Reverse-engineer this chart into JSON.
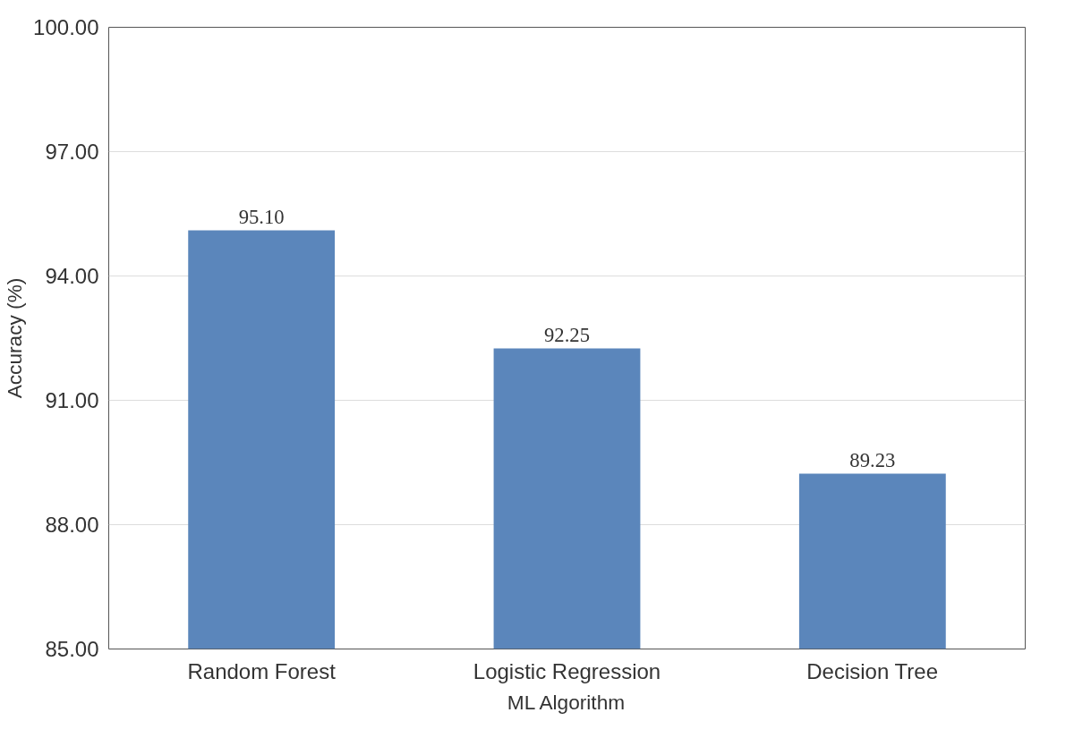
{
  "chart_data": {
    "type": "bar",
    "xlabel": "ML Algorithm",
    "ylabel": "Accuracy (%)",
    "categories": [
      "Random Forest",
      "Logistic Regression",
      "Decision Tree"
    ],
    "values": [
      95.1,
      92.25,
      89.23
    ],
    "value_labels": [
      "95.10",
      "92.25",
      "89.23"
    ],
    "color": "#5b86bb",
    "ylim": [
      85,
      100
    ],
    "yticks": [
      {
        "value": 85,
        "label": "85.00"
      },
      {
        "value": 88,
        "label": "88.00"
      },
      {
        "value": 91,
        "label": "91.00"
      },
      {
        "value": 94,
        "label": "94.00"
      },
      {
        "value": 97,
        "label": "97.00"
      },
      {
        "value": 100,
        "label": "100.00"
      }
    ],
    "grid": "y"
  }
}
